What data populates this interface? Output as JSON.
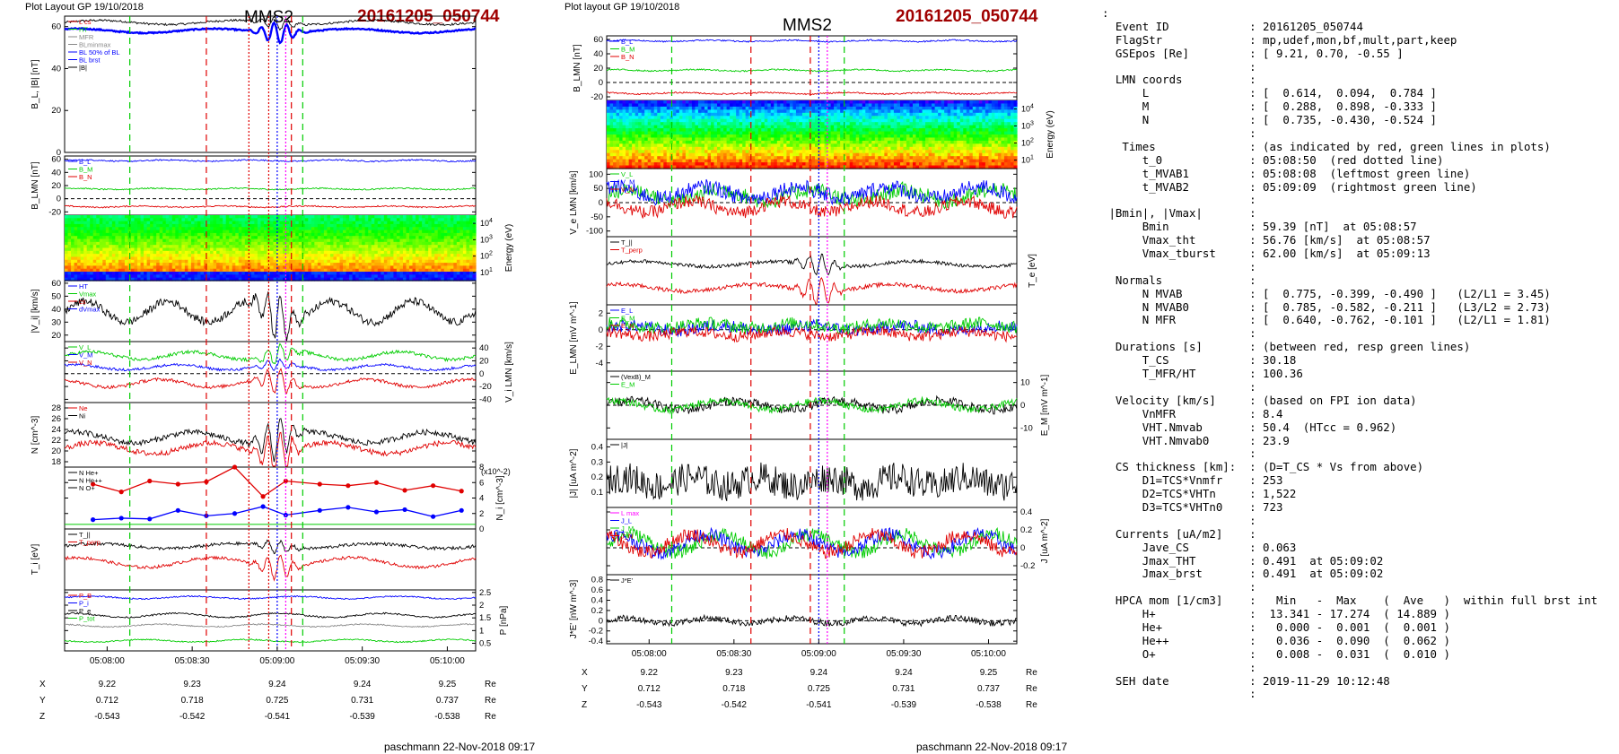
{
  "header_left": {
    "plot_layout": "Plot Layout GP 19/10/2018",
    "spacecraft": "MMS2",
    "event": "20161205_050744"
  },
  "header_right": {
    "plot_layout": "Plot layout GP 19/10/2018",
    "spacecraft": "MMS2",
    "event": "20161205_050744"
  },
  "footer_left": "paschmann 22-Nov-2018 09:17",
  "footer_right": "paschmann 22-Nov-2018 09:17",
  "time_axis": {
    "ticks": [
      "05:08:00",
      "05:08:30",
      "05:09:00",
      "05:09:30",
      "05:10:00"
    ],
    "t_start": "05:07:45",
    "t_end": "05:10:10"
  },
  "position_table": {
    "labels": [
      "X",
      "Y",
      "Z"
    ],
    "unit": "Re",
    "X": [
      "9.22",
      "9.23",
      "9.24",
      "9.24",
      "9.25"
    ],
    "Y": [
      "0.712",
      "0.718",
      "0.725",
      "0.731",
      "0.737"
    ],
    "Z": [
      "-0.543",
      "-0.542",
      "-0.541",
      "-0.539",
      "-0.538"
    ]
  },
  "colors": {
    "red": "#e00000",
    "green": "#00cc00",
    "blue": "#0000ff",
    "magenta": "#ff00ff",
    "gray": "#888888",
    "event": "#a00000"
  },
  "chart_data": [
    {
      "type": "line",
      "title": "",
      "ylabel": "B_L, |B| [nT]",
      "ylim": [
        0,
        65
      ],
      "yticks": [
        0,
        20,
        40,
        60
      ],
      "legend": [
        "L cs",
        "HT",
        "MFR",
        "BLminmax",
        "BL 50% of BL",
        "BL brst",
        "|B|"
      ],
      "series": [
        {
          "name": "|B|",
          "level": 62
        },
        {
          "name": "B_L",
          "level": 58
        }
      ]
    },
    {
      "type": "line",
      "ylabel": "B_LMN [nT]",
      "ylim": [
        -25,
        65
      ],
      "yticks": [
        -20,
        0,
        20,
        40,
        60
      ],
      "series": [
        {
          "name": "B_L",
          "level": 58
        },
        {
          "name": "B_M",
          "level": 15
        },
        {
          "name": "B_N",
          "level": -12
        }
      ]
    },
    {
      "type": "heatmap",
      "ylabel": "Energy (eV)",
      "yticks": [
        "10^4",
        "10^3",
        "10^2",
        "10^1"
      ]
    },
    {
      "type": "line",
      "ylabel": "|V_i| [km/s]",
      "ylim": [
        15,
        62
      ],
      "yticks": [
        20,
        30,
        40,
        50,
        60
      ],
      "legend": [
        "HT",
        "Vmax",
        "cs",
        "dVmax"
      ],
      "series": [
        {
          "name": "|V_i|",
          "level": 38
        }
      ]
    },
    {
      "type": "line",
      "ylabel": "V_i LMN [km/s]",
      "ylim": [
        -45,
        50
      ],
      "yticks": [
        -40,
        -20,
        0,
        20,
        40
      ],
      "series": [
        {
          "name": "V_L",
          "level": 28
        },
        {
          "name": "V_M",
          "level": 10
        },
        {
          "name": "V_N",
          "level": -15
        }
      ]
    },
    {
      "type": "line",
      "ylabel": "N [cm^-3]",
      "ylim": [
        17,
        29
      ],
      "yticks": [
        18,
        20,
        22,
        24,
        26,
        28
      ],
      "series": [
        {
          "name": "Ne",
          "level": 20.5
        },
        {
          "name": "Ni",
          "level": 22.5
        }
      ]
    },
    {
      "type": "scatter",
      "ylabel": "N_i [cm^-3]",
      "scale_note": "(x10^-2)",
      "ylim": [
        0,
        8
      ],
      "yticks": [
        0,
        2,
        4,
        6,
        8
      ],
      "legend": [
        "N He+",
        "N He++",
        "N O+"
      ],
      "series": [
        {
          "name": "N He++",
          "x_s": [
            10,
            20,
            30,
            40,
            50,
            60,
            70,
            78,
            90,
            100,
            110,
            120,
            130,
            140
          ],
          "y": [
            5.8,
            4.8,
            6.2,
            5.8,
            6.1,
            8.0,
            4.2,
            6.2,
            5.8,
            5.6,
            6.0,
            5.0,
            5.6,
            4.9
          ]
        },
        {
          "name": "N O+",
          "x_s": [
            10,
            20,
            30,
            40,
            50,
            60,
            70,
            78,
            90,
            100,
            110,
            120,
            130,
            140
          ],
          "y": [
            1.2,
            1.4,
            1.3,
            2.4,
            1.7,
            2.0,
            2.9,
            1.8,
            2.4,
            2.8,
            2.2,
            2.5,
            1.6,
            2.4
          ]
        }
      ]
    },
    {
      "type": "line",
      "ylabel": "T_i [eV]",
      "series": [
        {
          "name": "T_||",
          "level": 0.72
        },
        {
          "name": "T_perp",
          "level": 0.45
        }
      ]
    },
    {
      "type": "line",
      "ylabel": "P [nPa]",
      "ylim": [
        0.2,
        2.6
      ],
      "yticks": [
        0.5,
        1.0,
        1.5,
        2.0,
        2.5
      ],
      "series": [
        {
          "name": "P_B",
          "level": 2.3
        },
        {
          "name": "P_i",
          "level": 1.6
        },
        {
          "name": "P_e",
          "level": 1.2
        },
        {
          "name": "P_tot",
          "level": 0.6
        }
      ]
    },
    {
      "type": "line",
      "ylabel": "B_LMN [nT]",
      "ylim": [
        -25,
        65
      ],
      "yticks": [
        -20,
        0,
        20,
        40,
        60
      ],
      "series": [
        {
          "name": "B_L",
          "level": 58
        },
        {
          "name": "B_M",
          "level": 17
        },
        {
          "name": "B_N",
          "level": -15
        }
      ]
    },
    {
      "type": "heatmap",
      "ylabel": "Energy (eV)",
      "yticks": [
        "10^4",
        "10^3",
        "10^2",
        "10^1"
      ]
    },
    {
      "type": "line",
      "ylabel": "V_e LMN [km/s]",
      "ylim": [
        -120,
        120
      ],
      "yticks": [
        -100,
        -50,
        0,
        50,
        100
      ],
      "series": [
        {
          "name": "V_L",
          "level": 25
        },
        {
          "name": "V_M",
          "level": 35
        },
        {
          "name": "V_N",
          "level": -15
        }
      ]
    },
    {
      "type": "line",
      "ylabel": "T_e [eV]",
      "series": [
        {
          "name": "T_||",
          "level": 0.6
        },
        {
          "name": "T_perp",
          "level": 0.25
        }
      ]
    },
    {
      "type": "line",
      "ylabel": "E_LMN [mV m^-1]",
      "ylim": [
        -5,
        3
      ],
      "yticks": [
        -4,
        -2,
        0,
        2
      ],
      "series": [
        {
          "name": "E_L",
          "level": 0.2
        },
        {
          "name": "E_M",
          "level": 0.5
        },
        {
          "name": "E_N",
          "level": -0.5
        }
      ]
    },
    {
      "type": "line",
      "ylabel": "E_M [mV m^-1]",
      "ylim": [
        -15,
        15
      ],
      "yticks": [
        -10,
        0,
        10
      ],
      "series": [
        {
          "name": "(VexB)_M",
          "level": 0
        },
        {
          "name": "E_M",
          "level": 0
        }
      ]
    },
    {
      "type": "line",
      "ylabel": "|J| [uA m^-2]",
      "ylim": [
        0,
        0.45
      ],
      "yticks": [
        0.1,
        0.2,
        0.3,
        0.4
      ],
      "series": [
        {
          "name": "|J|",
          "level": 0.17
        }
      ]
    },
    {
      "type": "line",
      "ylabel": "J [uA m^-2]",
      "ylim": [
        -0.3,
        0.45
      ],
      "yticks": [
        -0.2,
        0.0,
        0.2,
        0.4
      ],
      "legend": [
        "L max",
        "J_L",
        "J_M",
        "J_N"
      ],
      "series": [
        {
          "name": "J_L",
          "level": 0.05
        },
        {
          "name": "J_M",
          "level": 0.05
        },
        {
          "name": "J_N",
          "level": 0.05
        }
      ]
    },
    {
      "type": "line",
      "ylabel": "J*E' [nW m^-3]",
      "ylim": [
        -0.45,
        0.9
      ],
      "yticks": [
        -0.4,
        -0.2,
        0.0,
        0.2,
        0.4,
        0.6,
        0.8
      ],
      "series": [
        {
          "name": "J*E'",
          "level": 0.0
        }
      ]
    }
  ],
  "info_lines": [
    ":",
    "  Event ID            : 20161205_050744",
    "  FlagStr             : mp,udef,mon,bf,mult,part,keep",
    "  GSEpos [Re]         : [ 9.21, 0.70, -0.55 ]",
    "                      :",
    "  LMN coords          :",
    "      L               : [  0.614,  0.094,  0.784 ]",
    "      M               : [  0.288,  0.898, -0.333 ]",
    "      N               : [  0.735, -0.430, -0.524 ]",
    "                      :",
    "   Times              : (as indicated by red, green lines in plots)",
    "      t_0             : 05:08:50  (red dotted line)",
    "      t_MVAB1         : 05:08:08  (leftmost green line)",
    "      t_MVAB2         : 05:09:09  (rightmost green line)",
    "                      :",
    " |Bmin|, |Vmax|       :",
    "      Bmin            : 59.39 [nT]  at 05:08:57",
    "      Vmax_tht        : 56.76 [km/s]  at 05:08:57",
    "      Vmax_tburst     : 62.00 [km/s]  at 05:09:13",
    "                      :",
    "  Normals             :",
    "      N MVAB          : [  0.775, -0.399, -0.490 ]   (L2/L1 = 3.45)",
    "      N MVAB0         : [  0.785, -0.582, -0.211 ]   (L3/L2 = 2.73)",
    "      N MFR           : [  0.640, -0.762, -0.101 ]   (L2/L1 = 1.81)",
    "                      :",
    "  Durations [s]       : (between red, resp green lines)",
    "      T_CS            : 30.18",
    "      T_MFR/HT        : 100.36",
    "                      :",
    "  Velocity [km/s]     : (based on FPI ion data)",
    "      VnMFR           : 8.4",
    "      VHT.Nmvab       : 50.4  (HTcc = 0.962)",
    "      VHT.Nmvab0      : 23.9",
    "                      :",
    "  CS thickness [km]:  : (D=T_CS * Vs from above)",
    "      D1=TCS*Vnmfr    : 253",
    "      D2=TCS*VHTn     : 1,522",
    "      D3=TCS*VHTn0    : 723",
    "                      :",
    "  Currents [uA/m2]    :",
    "      Jave_CS         : 0.063",
    "      Jmax_THT        : 0.491  at 05:09:02",
    "      Jmax_brst       : 0.491  at 05:09:02",
    "                      :",
    "  HPCA mom [1/cm3]    :   Min   -  Max    (  Ave   )  within full brst int",
    "      H+              :  13.341 - 17.274  ( 14.889 )",
    "      He+             :   0.000 -  0.001  (  0.001 )",
    "      He++            :   0.036 -  0.090  (  0.062 )",
    "      O+              :   0.008 -  0.031  (  0.010 )",
    "                      :",
    "  SEH date            : 2019-11-29 10:12:48",
    "                      :"
  ]
}
